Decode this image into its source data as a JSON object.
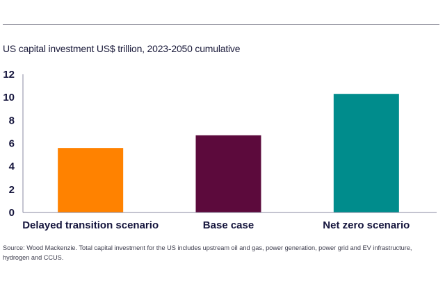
{
  "header": {
    "title": "US capital investment US$ trillion, 2023-2050 cumulative"
  },
  "footer": {
    "source": "Source: Wood Mackenzie. Total capital investment for the US includes upstream oil and gas, power generation, power grid and EV infrastructure, hydrogen and CCUS."
  },
  "chart_data": {
    "type": "bar",
    "title": "US capital investment US$ trillion, 2023-2050 cumulative",
    "xlabel": "",
    "ylabel": "",
    "categories": [
      "Delayed transition scenario",
      "Base case",
      "Net zero scenario"
    ],
    "values": [
      5.6,
      6.7,
      10.3
    ],
    "colors": [
      "#ff8200",
      "#5c0a3c",
      "#008c8c"
    ],
    "ylim": [
      0,
      12
    ],
    "yticks": [
      0,
      2,
      4,
      6,
      8,
      10,
      12
    ],
    "grid": false,
    "legend": "none"
  }
}
